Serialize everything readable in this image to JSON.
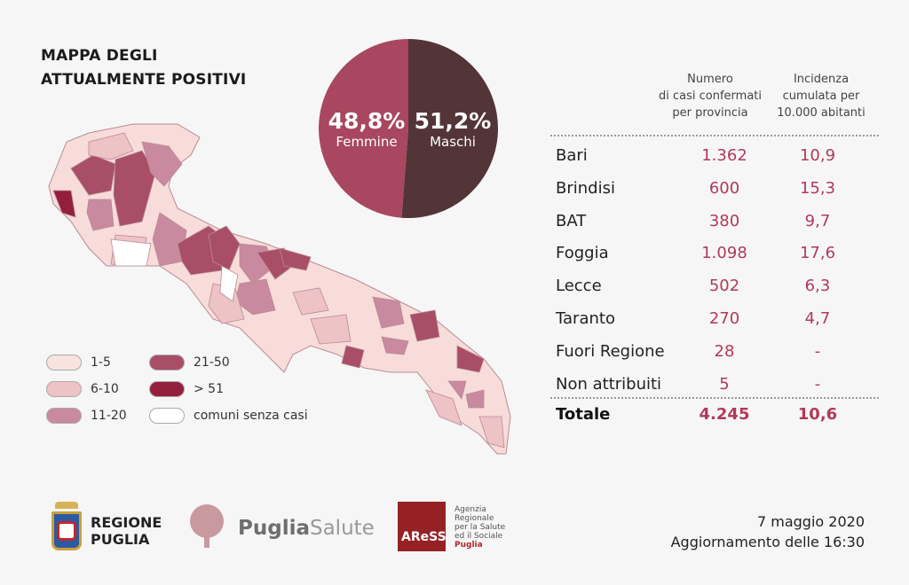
{
  "title_lines": [
    "MAPPA DEGLI",
    "ATTUALMENTE POSITIVI"
  ],
  "chart_data": [
    {
      "type": "pie",
      "slices": [
        {
          "label": "Femmine",
          "value": 48.8,
          "display": "48,8%",
          "color": "#a8475f"
        },
        {
          "label": "Maschi",
          "value": 51.2,
          "display": "51,2%",
          "color": "#533537"
        }
      ]
    },
    {
      "type": "table",
      "headers": [
        "",
        "Numero di casi confermati per provincia",
        "Incidenza cumulata per 10.000 abitanti"
      ],
      "header_lines": [
        [
          "Numero",
          "di casi confermati",
          "per provincia"
        ],
        [
          "Incidenza",
          "cumulata per",
          "10.000 abitanti"
        ]
      ],
      "rows": [
        [
          "Bari",
          "1.362",
          "10,9"
        ],
        [
          "Brindisi",
          "600",
          "15,3"
        ],
        [
          "BAT",
          "380",
          "9,7"
        ],
        [
          "Foggia",
          "1.098",
          "17,6"
        ],
        [
          "Lecce",
          "502",
          "6,3"
        ],
        [
          "Taranto",
          "270",
          "4,7"
        ],
        [
          "Fuori Regione",
          "28",
          "-"
        ],
        [
          "Non attribuiti",
          "5",
          "-"
        ]
      ],
      "total": [
        "Totale",
        "4.245",
        "10,6"
      ]
    }
  ],
  "map_legend": [
    {
      "label": "1-5",
      "color": "#f9e3df"
    },
    {
      "label": "6-10",
      "color": "#edc3c6"
    },
    {
      "label": "11-20",
      "color": "#c98a9f"
    },
    {
      "label": "21-50",
      "color": "#a94e67"
    },
    {
      "label": "> 51",
      "color": "#931f3c"
    },
    {
      "label": "comuni senza casi",
      "color": "#ffffff"
    }
  ],
  "logos": {
    "regione": [
      "REGIONE",
      "PUGLIA"
    ],
    "puglia_salute": [
      "Puglia",
      "Salute"
    ],
    "aress": "AReSS",
    "aress_text": [
      "Agenzia",
      "Regionale",
      "per la Salute",
      "ed il Sociale",
      "Puglia"
    ]
  },
  "footer": {
    "date": "7 maggio 2020",
    "update": "Aggiornamento delle 16:30"
  }
}
